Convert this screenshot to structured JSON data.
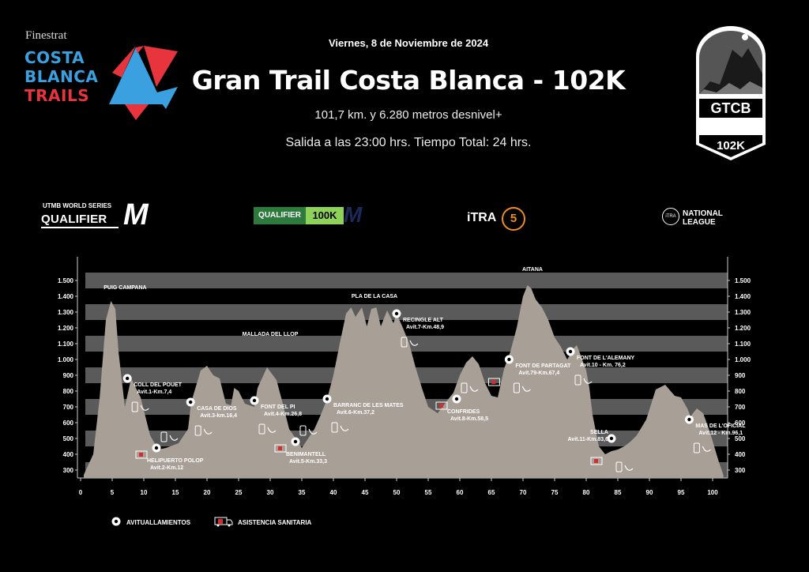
{
  "header": {
    "brand_small": "Finestrat",
    "brand_line1": "COSTA",
    "brand_line2": "BLANCA",
    "brand_line3": "TRAILS",
    "date": "Viernes, 8 de Noviembre de 2024",
    "title": "Gran Trail Costa Blanca - 102K",
    "subtitle": "101,7 km. y 6.280 metros desnivel+",
    "start_info": "Salida a las 23:00 hrs. Tiempo Total: 24 hrs.",
    "badge_code": "GTCB",
    "badge_distance": "102K"
  },
  "sponsors": {
    "utmb_small": "UTMB WORLD SERIES",
    "utmb_big": "QUALIFIER",
    "utmb_mark": "M",
    "qualifier": "QUALIFIER",
    "qualifier_dist": "100K",
    "qualifier_mark": "M",
    "itra": "iTRA",
    "itra_points": "5",
    "nl_small": "iTRA",
    "nl_line1": "NATIONAL",
    "nl_line2": "LEAGUE"
  },
  "legend": {
    "aid": "AVITUALLAMIENTOS",
    "medical": "ASISTENCIA SANITARIA"
  },
  "colors": {
    "background": "#000000",
    "profile_fill": "#a89f97",
    "band": "#5a5a5a",
    "brand_blue": "#3aa0e0",
    "brand_red": "#e8343c",
    "medical_red": "#d92b2b"
  },
  "chart_data": {
    "type": "area",
    "xlim": [
      0,
      102
    ],
    "ylim": [
      250,
      1550
    ],
    "x_ticks": [
      0,
      5,
      10,
      15,
      20,
      25,
      30,
      35,
      40,
      45,
      50,
      55,
      60,
      65,
      70,
      75,
      80,
      85,
      90,
      95,
      100
    ],
    "y_ticks": [
      300,
      400,
      500,
      600,
      700,
      800,
      900,
      1000,
      1100,
      1200,
      1300,
      1400,
      1500
    ],
    "y_tick_labels": [
      "300",
      "400",
      "500",
      "600",
      "700",
      "800",
      "900",
      "1.000",
      "1.100",
      "1.200",
      "1.300",
      "1.400",
      "1.500"
    ],
    "grid": true,
    "legend_position": "bottom-left",
    "profile": [
      [
        0.5,
        270
      ],
      [
        2,
        400
      ],
      [
        3,
        750
      ],
      [
        4,
        1250
      ],
      [
        4.8,
        1370
      ],
      [
        5.5,
        1320
      ],
      [
        6,
        1050
      ],
      [
        7,
        700
      ],
      [
        8,
        880
      ],
      [
        9.5,
        760
      ],
      [
        11,
        520
      ],
      [
        12.3,
        430
      ],
      [
        13.5,
        440
      ],
      [
        15.5,
        470
      ],
      [
        17,
        560
      ],
      [
        17.5,
        730
      ],
      [
        19,
        930
      ],
      [
        20,
        960
      ],
      [
        21,
        900
      ],
      [
        22,
        880
      ],
      [
        23,
        720
      ],
      [
        23.8,
        710
      ],
      [
        24.3,
        820
      ],
      [
        25,
        800
      ],
      [
        26,
        720
      ],
      [
        27.5,
        700
      ],
      [
        28,
        820
      ],
      [
        29.5,
        950
      ],
      [
        31,
        870
      ],
      [
        32,
        720
      ],
      [
        33,
        560
      ],
      [
        34.2,
        490
      ],
      [
        35,
        440
      ],
      [
        37,
        560
      ],
      [
        38,
        650
      ],
      [
        39,
        750
      ],
      [
        40,
        900
      ],
      [
        41,
        1100
      ],
      [
        42,
        1290
      ],
      [
        42.8,
        1330
      ],
      [
        43.5,
        1270
      ],
      [
        44.5,
        1330
      ],
      [
        45.3,
        1210
      ],
      [
        46,
        1320
      ],
      [
        46.8,
        1330
      ],
      [
        47.5,
        1210
      ],
      [
        48.5,
        1310
      ],
      [
        49.5,
        1230
      ],
      [
        50,
        1290
      ],
      [
        51,
        1200
      ],
      [
        52,
        1100
      ],
      [
        53,
        950
      ],
      [
        54,
        820
      ],
      [
        55,
        700
      ],
      [
        56.5,
        660
      ],
      [
        58,
        740
      ],
      [
        59,
        790
      ],
      [
        60,
        900
      ],
      [
        61,
        980
      ],
      [
        62,
        1020
      ],
      [
        63,
        970
      ],
      [
        64,
        850
      ],
      [
        65,
        770
      ],
      [
        66,
        760
      ],
      [
        67,
        940
      ],
      [
        68,
        1050
      ],
      [
        69,
        1200
      ],
      [
        70,
        1400
      ],
      [
        70.7,
        1470
      ],
      [
        71.3,
        1450
      ],
      [
        72,
        1380
      ],
      [
        73,
        1330
      ],
      [
        74,
        1250
      ],
      [
        75,
        1140
      ],
      [
        76,
        1080
      ],
      [
        77,
        1000
      ],
      [
        78,
        1070
      ],
      [
        78.5,
        1090
      ],
      [
        79,
        1040
      ],
      [
        80,
        930
      ],
      [
        80.5,
        820
      ],
      [
        81,
        650
      ],
      [
        82,
        450
      ],
      [
        83,
        400
      ],
      [
        84,
        420
      ],
      [
        85,
        430
      ],
      [
        86,
        450
      ],
      [
        87,
        480
      ],
      [
        88,
        520
      ],
      [
        89.5,
        620
      ],
      [
        91,
        810
      ],
      [
        92.5,
        840
      ],
      [
        94,
        770
      ],
      [
        95,
        760
      ],
      [
        96,
        690
      ],
      [
        96.5,
        640
      ],
      [
        97.5,
        690
      ],
      [
        98.5,
        660
      ],
      [
        99.5,
        550
      ],
      [
        101,
        350
      ],
      [
        101.7,
        270
      ]
    ],
    "peaks": [
      {
        "name": "PUIG CAMPANA",
        "x": 4.8,
        "y": 1445
      },
      {
        "name": "MALLADA DEL LLOP",
        "x": 30,
        "y": 1150
      },
      {
        "name": "PLA DE LA CASA",
        "x": 46.5,
        "y": 1390
      },
      {
        "name": "AITANA",
        "x": 71.5,
        "y": 1560
      }
    ],
    "aid_stations": [
      {
        "name": "COLL DEL POUET",
        "detail": "Avit.1-Km.7,4",
        "x": 7.4,
        "y": 880,
        "medical": false
      },
      {
        "name": "HELIPUERTO POLOP",
        "detail": "Avit.2-Km.12",
        "x": 12,
        "y": 440,
        "medical": true
      },
      {
        "name": "CASA DE DIOS",
        "detail": "Avit.3-km.16,4",
        "x": 17.4,
        "y": 730,
        "medical": false
      },
      {
        "name": "FONT DEL PI",
        "detail": "Avit.4-Km.26,8",
        "x": 27.5,
        "y": 740,
        "medical": false
      },
      {
        "name": "BENIMANTELL",
        "detail": "Avit.5-Km.33,3",
        "x": 34,
        "y": 480,
        "medical": true
      },
      {
        "name": "BARRANC DE LES MATES",
        "detail": "Avit.6-Km.37,2",
        "x": 39,
        "y": 750,
        "medical": false
      },
      {
        "name": "RECINGLE ALT",
        "detail": "Avit.7-Km.48,9",
        "x": 50,
        "y": 1290,
        "medical": false
      },
      {
        "name": "CONFRIDES",
        "detail": "Avit.8-Km.58,5",
        "x": 59.5,
        "y": 750,
        "medical": true
      },
      {
        "name": "FONT DE PARTAGAT",
        "detail": "Avit.79-Km.67,4",
        "x": 67.8,
        "y": 1000,
        "medical": true
      },
      {
        "name": "FONT DE L'ALEMANY",
        "detail": "Avit.10 - Km. 76,2",
        "x": 77.5,
        "y": 1050,
        "medical": false
      },
      {
        "name": "SELLA",
        "detail": "Avit.11-Km.83,6",
        "x": 84,
        "y": 500,
        "medical": true
      },
      {
        "name": "MAS DE L'OFICIAL",
        "detail": "Avit.12 - Km.96,1",
        "x": 96.3,
        "y": 620,
        "medical": false
      }
    ]
  }
}
